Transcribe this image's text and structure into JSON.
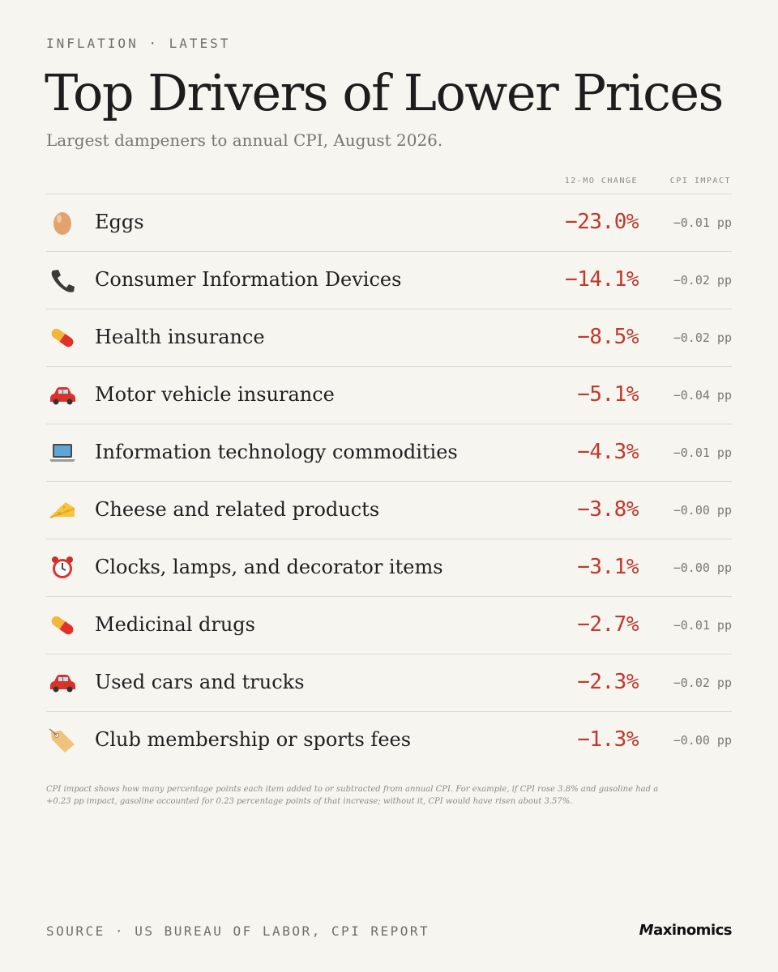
{
  "header": {
    "eyebrow": "INFLATION · LATEST",
    "title": "Top Drivers of Lower Prices",
    "subtitle": "Largest dampeners to annual CPI, August 2026."
  },
  "columns": {
    "change": "12-MO CHANGE",
    "impact": "CPI IMPACT"
  },
  "rows": [
    {
      "icon": "egg-icon",
      "label": "Eggs",
      "change": "−23.0%",
      "impact": "−0.01 pp"
    },
    {
      "icon": "telephone-icon",
      "label": "Consumer Information Devices",
      "change": "−14.1%",
      "impact": "−0.02 pp"
    },
    {
      "icon": "pill-icon",
      "label": "Health insurance",
      "change": "−8.5%",
      "impact": "−0.02 pp"
    },
    {
      "icon": "car-icon",
      "label": "Motor vehicle insurance",
      "change": "−5.1%",
      "impact": "−0.04 pp"
    },
    {
      "icon": "laptop-icon",
      "label": "Information technology commodities",
      "change": "−4.3%",
      "impact": "−0.01 pp"
    },
    {
      "icon": "cheese-icon",
      "label": "Cheese and related products",
      "change": "−3.8%",
      "impact": "−0.00 pp"
    },
    {
      "icon": "alarm-clock-icon",
      "label": "Clocks, lamps, and decorator items",
      "change": "−3.1%",
      "impact": "−0.00 pp"
    },
    {
      "icon": "pill-icon",
      "label": "Medicinal drugs",
      "change": "−2.7%",
      "impact": "−0.01 pp"
    },
    {
      "icon": "car-icon",
      "label": "Used cars and trucks",
      "change": "−2.3%",
      "impact": "−0.02 pp"
    },
    {
      "icon": "label-tag-icon",
      "label": "Club membership or sports fees",
      "change": "−1.3%",
      "impact": "−0.00 pp"
    }
  ],
  "footnote": "CPI impact shows how many percentage points each item added to or subtracted from annual CPI. For example, if CPI rose 3.8% and gasoline had a +0.23 pp impact, gasoline accounted for 0.23 percentage points of that increase; without it, CPI would have risen about 3.57%.",
  "footer": {
    "source": "SOURCE · US BUREAU OF LABOR, CPI REPORT",
    "brand_initial": "M",
    "brand_rest": "axinomics"
  },
  "colors": {
    "background": "#f6f5f0",
    "negative": "#c0392b",
    "rule": "#dcdad3"
  }
}
